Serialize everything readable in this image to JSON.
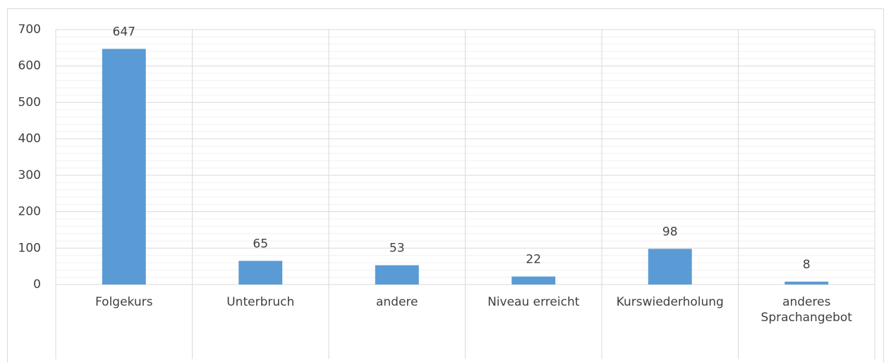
{
  "chart_data": {
    "type": "bar",
    "categories": [
      "Folgekurs",
      "Unterbruch",
      "andere",
      "Niveau erreicht",
      "Kurswiederholung",
      "anderes Sprachangebot"
    ],
    "values": [
      647,
      65,
      53,
      22,
      98,
      8
    ],
    "color": "#5b9bd5",
    "ylim": [
      0,
      700
    ],
    "yticks": [
      0,
      100,
      200,
      300,
      400,
      500,
      600,
      700
    ],
    "grid": true
  }
}
